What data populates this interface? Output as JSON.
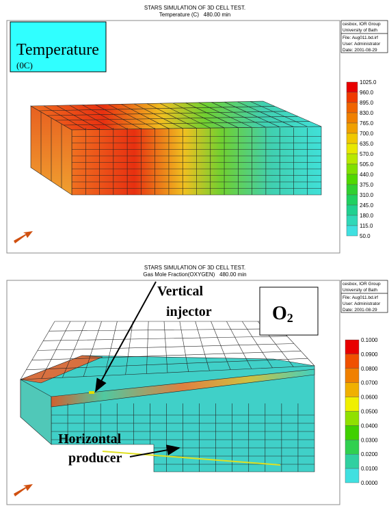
{
  "panels": [
    {
      "title": "STARS SIMULATION OF 3D CELL TEST.",
      "subtitle": "Temperature (C)   480.00 min",
      "info": [
        "cesbox, IOR Group",
        "University of Bath",
        "File: Aug011.bd.irf",
        "User: Administrator",
        "Date: 2001-08-29"
      ],
      "legend": {
        "labels": [
          "1025.0",
          "960.0",
          "895.0",
          "830.0",
          "765.0",
          "700.0",
          "635.0",
          "570.0",
          "505.0",
          "440.0",
          "375.0",
          "310.0",
          "245.0",
          "180.0",
          "115.0",
          "50.0"
        ],
        "colors": [
          "#e80000",
          "#f03a00",
          "#f06400",
          "#f08000",
          "#f0a000",
          "#f0c800",
          "#e8e800",
          "#b8e800",
          "#80e000",
          "#50d800",
          "#30d030",
          "#20d060",
          "#20d090",
          "#30d8b8",
          "#40e0e0"
        ]
      },
      "overlay": {
        "title": "Temperature",
        "subtitle": "(0C)"
      }
    },
    {
      "title": "STARS SIMULATION OF 3D CELL TEST.",
      "subtitle": "Gas Mole Fraction(OXYGEN)   480.00 min",
      "info": [
        "cesbox, IOR Group",
        "University of Bath",
        "File: Aug011.bd.irf",
        "User: Administrator",
        "Date: 2001-08-29"
      ],
      "legend": {
        "labels": [
          "0.1000",
          "0.0900",
          "0.0800",
          "0.0700",
          "0.0600",
          "0.0500",
          "0.0400",
          "0.0300",
          "0.0200",
          "0.0100",
          "0.0000"
        ],
        "colors": [
          "#e80000",
          "#f05000",
          "#f08000",
          "#f0b000",
          "#f0f000",
          "#90e000",
          "#40d000",
          "#30d050",
          "#30d0a0",
          "#40e0e0"
        ]
      },
      "overlay": {
        "title": "O",
        "subscript": "2"
      },
      "annotations": [
        "Vertical",
        "injector",
        "Horizontal",
        "producer"
      ]
    }
  ]
}
